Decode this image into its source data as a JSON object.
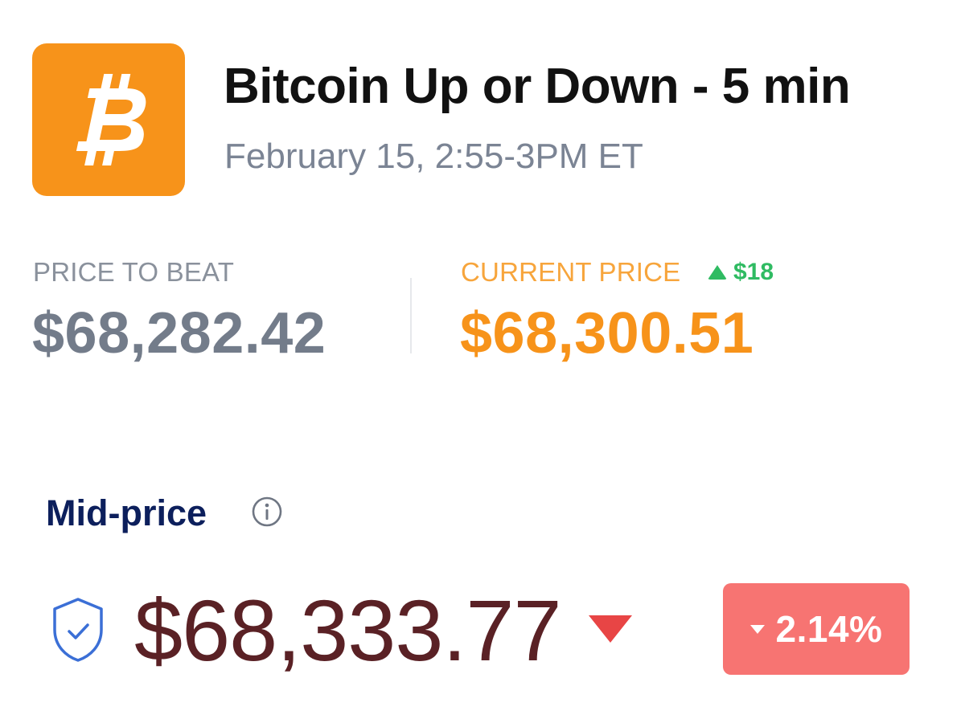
{
  "header": {
    "title": "Bitcoin Up or Down - 5 min",
    "subtitle": "February 15, 2:55-3PM ET",
    "logo_icon": "bitcoin-icon",
    "logo_color": "#f7931a"
  },
  "prices": {
    "beat_label": "PRICE TO BEAT",
    "beat_value": "$68,282.42",
    "current_label": "CURRENT PRICE",
    "current_value": "$68,300.51",
    "current_delta": "$18",
    "delta_icon": "triangle-up-icon",
    "delta_color": "#2fbb62"
  },
  "mid": {
    "label": "Mid-price",
    "info_icon": "info-icon",
    "shield_icon": "shield-check-icon",
    "value": "$68,333.77",
    "trend_icon": "triangle-down-icon",
    "change_pct": "2.14%",
    "change_color": "#f77472"
  }
}
